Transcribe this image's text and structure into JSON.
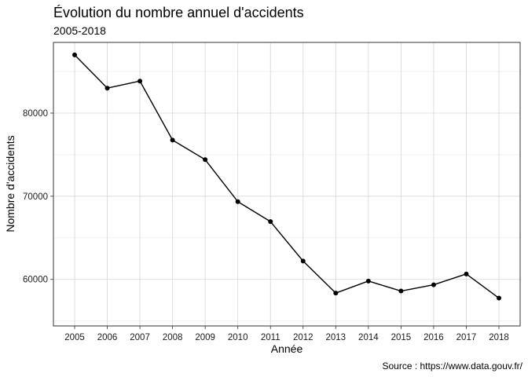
{
  "chart_data": {
    "type": "line",
    "title": "Évolution du nombre annuel d'accidents",
    "subtitle": "2005-2018",
    "xlabel": "Année",
    "ylabel": "Nombre d'accidents",
    "caption": "Source : https://www.data.gouv.fr/",
    "x": [
      "2005",
      "2006",
      "2007",
      "2008",
      "2009",
      "2010",
      "2011",
      "2012",
      "2013",
      "2014",
      "2015",
      "2016",
      "2017",
      "2018"
    ],
    "values": [
      87000,
      83000,
      83850,
      76750,
      74400,
      69350,
      66950,
      62200,
      58350,
      59800,
      58600,
      59350,
      60650,
      57750
    ],
    "y_ticks": [
      60000,
      70000,
      80000
    ],
    "y_tick_labels": [
      "60000",
      "70000",
      "80000"
    ],
    "ylim": [
      54400,
      88500
    ],
    "grid": true,
    "colors": {
      "line": "#000000",
      "points": "#000000",
      "panel_border": "#333333",
      "grid_major": "#d6d6d6",
      "grid_minor": "#ebebeb"
    }
  }
}
